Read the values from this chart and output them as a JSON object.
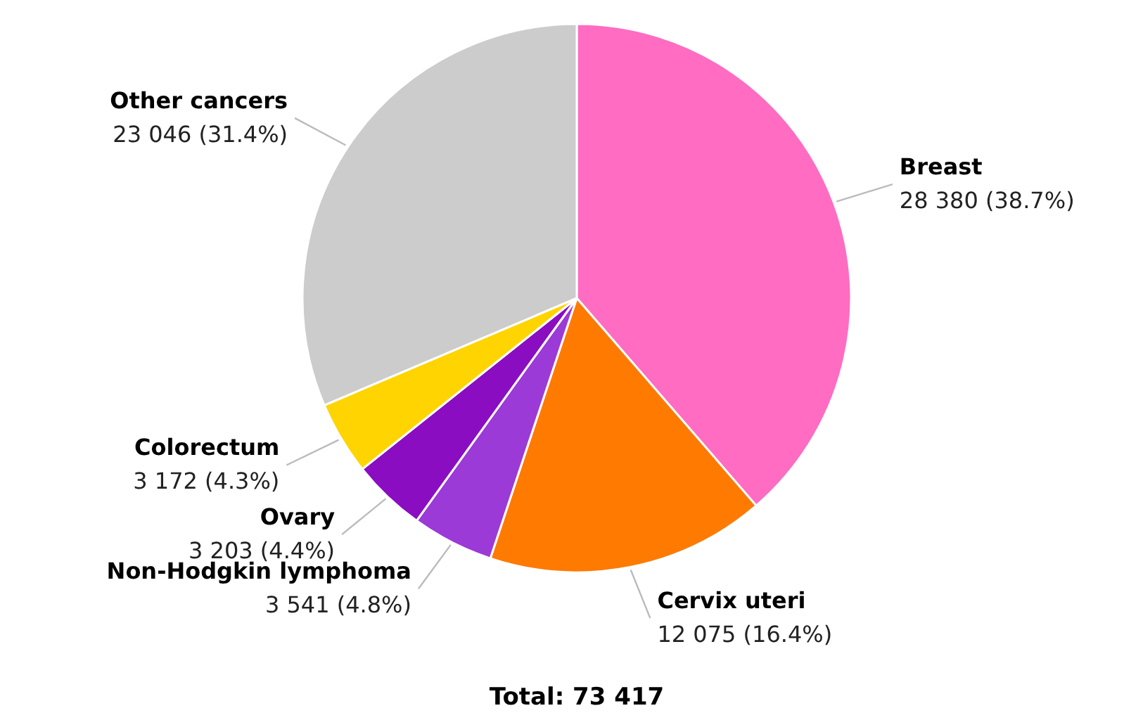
{
  "chart_data": {
    "type": "pie",
    "title": "Total: 73 417",
    "categories": [
      "Breast",
      "Cervix uteri",
      "Non-Hodgkin lymphoma",
      "Ovary",
      "Colorectum",
      "Other cancers"
    ],
    "values": [
      28380,
      12075,
      3541,
      3203,
      3172,
      23046
    ],
    "value_labels": [
      "28 380 (38.7%)",
      "12 075 (16.4%)",
      "3 541 (4.8%)",
      "3 203 (4.4%)",
      "3 172 (4.3%)",
      "23 046 (31.4%)"
    ],
    "colors": [
      "#ff6cc1",
      "#ff7a00",
      "#9b3ad6",
      "#8a0dc2",
      "#ffd400",
      "#cccccc"
    ]
  }
}
